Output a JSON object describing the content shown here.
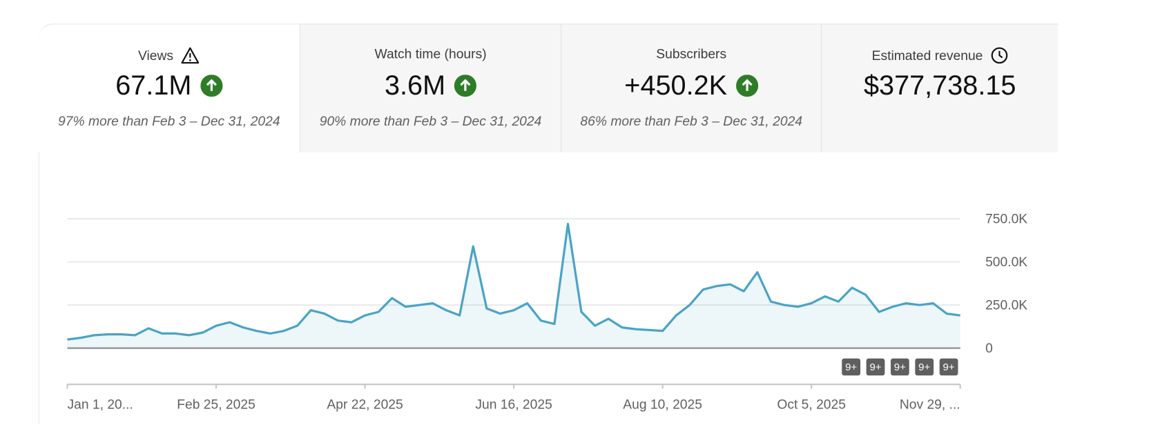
{
  "tabs": [
    {
      "title": "Views",
      "value": "67.1M",
      "comparison": "97% more than Feb 3 – Dec 31, 2024"
    },
    {
      "title": "Watch time (hours)",
      "value": "3.6M",
      "comparison": "90% more than Feb 3 – Dec 31, 2024"
    },
    {
      "title": "Subscribers",
      "value": "+450.2K",
      "comparison": "86% more than Feb 3 – Dec 31, 2024"
    },
    {
      "title": "Estimated revenue",
      "value": "$377,738.15"
    }
  ],
  "chart_data": {
    "type": "line",
    "color": "#4aa3c6",
    "categories": [
      "Jan 1, 20...",
      null,
      null,
      null,
      null,
      null,
      null,
      null,
      null,
      null,
      null,
      "Feb 25, 2025",
      null,
      null,
      null,
      null,
      null,
      null,
      null,
      null,
      null,
      null,
      "Apr 22, 2025",
      null,
      null,
      null,
      null,
      null,
      null,
      null,
      null,
      null,
      null,
      "Jun 16, 2025",
      null,
      null,
      null,
      null,
      null,
      null,
      null,
      null,
      null,
      null,
      "Aug 10, 2025",
      null,
      null,
      null,
      null,
      null,
      null,
      null,
      null,
      null,
      null,
      "Oct 5, 2025",
      null,
      null,
      null,
      null,
      null,
      null,
      null,
      null,
      null,
      null,
      "Nov 29, ..."
    ],
    "values": [
      50000,
      60000,
      75000,
      80000,
      80000,
      75000,
      115000,
      85000,
      85000,
      75000,
      90000,
      130000,
      150000,
      120000,
      100000,
      85000,
      100000,
      130000,
      220000,
      200000,
      160000,
      150000,
      190000,
      210000,
      290000,
      240000,
      250000,
      260000,
      220000,
      190000,
      590000,
      230000,
      200000,
      220000,
      260000,
      160000,
      140000,
      720000,
      210000,
      130000,
      170000,
      120000,
      110000,
      105000,
      100000,
      190000,
      250000,
      340000,
      360000,
      370000,
      330000,
      440000,
      270000,
      250000,
      240000,
      260000,
      300000,
      270000,
      350000,
      310000,
      210000,
      240000,
      260000,
      250000,
      260000,
      200000,
      190000
    ],
    "ylim": [
      0,
      750000
    ],
    "yticks": [
      0,
      {
        "value": 250000,
        "label": "250.0K"
      },
      {
        "value": 500000,
        "label": "500.0K"
      },
      {
        "value": 750000,
        "label": "750.0K"
      }
    ],
    "grid": true,
    "annotations": [
      "9+",
      "9+",
      "9+",
      "9+",
      "9+"
    ]
  }
}
